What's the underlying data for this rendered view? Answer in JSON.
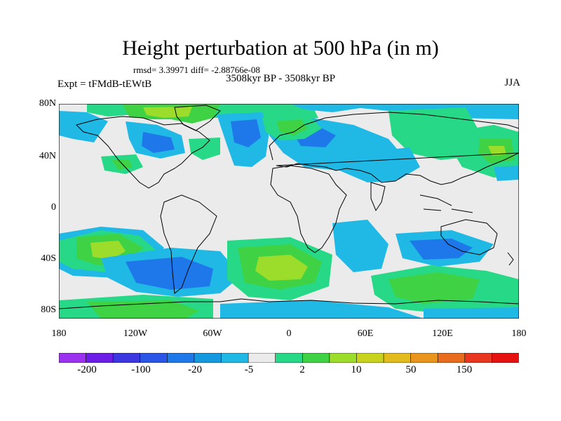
{
  "title": "Height perturbation at 500 hPa (in m)",
  "stats": "rmsd= 3.39971 diff= -2.88766e-08",
  "expt": "Expt = tFMdB-tEWtB",
  "period": "3508kyr BP - 3508kyr BP",
  "season": "JJA",
  "lat_labels": [
    "80N",
    "40N",
    "0",
    "40S",
    "80S"
  ],
  "lon_labels": [
    "180",
    "120W",
    "60W",
    "0",
    "60E",
    "120E",
    "180"
  ],
  "colorbar": {
    "labels": [
      "-200",
      "-100",
      "-20",
      "-5",
      "2",
      "10",
      "50",
      "150"
    ],
    "colors": [
      "#9a32f0",
      "#6c1ee8",
      "#3c37e0",
      "#2b55e6",
      "#1f78ea",
      "#1599de",
      "#20b9e6",
      "#ebebeb",
      "#27d986",
      "#3fd244",
      "#9cdc2b",
      "#c9d21d",
      "#e2bb1c",
      "#e9951d",
      "#e96b1e",
      "#e9361f",
      "#e61212"
    ]
  },
  "colors": {
    "land_outline": "#000000",
    "background": "#ebebeb",
    "cyan": "#20b9e6",
    "blue": "#1f78ea",
    "green_light": "#27d986",
    "green": "#3fd244",
    "yellow_green": "#9cdc2b"
  }
}
